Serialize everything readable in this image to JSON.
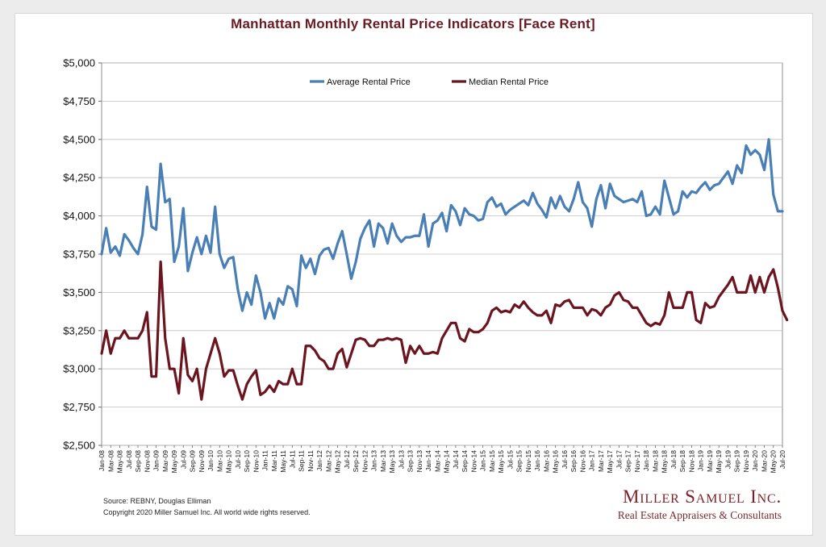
{
  "title": "Manhattan Monthly Rental Price Indicators [Face Rent]",
  "footer": {
    "source": "Source: REBNY, Douglas Elliman",
    "copyright": "Copyright 2020 Miller Samuel Inc.  All world wide rights reserved."
  },
  "brand": {
    "name": "Miller Samuel Inc.",
    "tagline": "Real Estate Appraisers & Consultants"
  },
  "colors": {
    "average": "#4a7fb5",
    "median": "#6b1520",
    "title": "#6b1a22",
    "grid": "#bfbfbf"
  },
  "chart_data": {
    "type": "line",
    "title": "Manhattan Monthly Rental Price Indicators [Face Rent]",
    "ylim": [
      2500,
      5000
    ],
    "yticks": [
      2500,
      2750,
      3000,
      3250,
      3500,
      3750,
      4000,
      4250,
      4500,
      4750,
      5000
    ],
    "ytick_labels": [
      "$2,500",
      "$2,750",
      "$3,000",
      "$3,250",
      "$3,500",
      "$3,750",
      "$4,000",
      "$4,250",
      "$4,500",
      "$4,750",
      "$5,000"
    ],
    "grid": "horizontal",
    "legend": "top-center",
    "x_start": "Jan-08",
    "x_end": "Jul-20",
    "xtick_labels": [
      "Jan-08",
      "Mar-08",
      "May-08",
      "Jul-08",
      "Sep-08",
      "Nov-08",
      "Jan-09",
      "Mar-09",
      "May-09",
      "Jul-09",
      "Sep-09",
      "Nov-09",
      "Jan-10",
      "Mar-10",
      "May-10",
      "Jul-10",
      "Sep-10",
      "Nov-10",
      "Jan-11",
      "Mar-11",
      "May-11",
      "Jul-11",
      "Sep-11",
      "Nov-11",
      "Jan-12",
      "Mar-12",
      "May-12",
      "Jul-12",
      "Sep-12",
      "Nov-12",
      "Jan-13",
      "Mar-13",
      "May-13",
      "Jul-13",
      "Sep-13",
      "Nov-13",
      "Jan-14",
      "Mar-14",
      "May-14",
      "Jul-14",
      "Sep-14",
      "Nov-14",
      "Jan-15",
      "Mar-15",
      "May-15",
      "Jul-15",
      "Sep-15",
      "Nov-15",
      "Jan-16",
      "Mar-16",
      "May-16",
      "Jul-16",
      "Sep-16",
      "Nov-16",
      "Jan-17",
      "Mar-17",
      "May-17",
      "Jul-17",
      "Sep-17",
      "Nov-17",
      "Jan-18",
      "Mar-18",
      "May-18",
      "Jul-18",
      "Sep-18",
      "Nov-18",
      "Jan-19",
      "Mar-19",
      "May-19",
      "Jul-19",
      "Sep-19",
      "Nov-19",
      "Jan-20",
      "Mar-20",
      "May-20",
      "Jul-20"
    ],
    "series": [
      {
        "name": "Average Rental Price",
        "color": "#4a7fb5",
        "values": [
          3750,
          3920,
          3760,
          3800,
          3740,
          3880,
          3840,
          3790,
          3750,
          3880,
          4190,
          3930,
          3910,
          4340,
          4090,
          4110,
          3700,
          3800,
          4050,
          3640,
          3760,
          3860,
          3750,
          3870,
          3760,
          4060,
          3750,
          3660,
          3720,
          3730,
          3520,
          3380,
          3500,
          3420,
          3610,
          3500,
          3330,
          3430,
          3330,
          3460,
          3420,
          3540,
          3520,
          3410,
          3740,
          3660,
          3720,
          3620,
          3740,
          3780,
          3790,
          3720,
          3820,
          3900,
          3750,
          3590,
          3700,
          3850,
          3920,
          3970,
          3800,
          3950,
          3920,
          3820,
          3950,
          3870,
          3830,
          3860,
          3860,
          3870,
          3870,
          4010,
          3800,
          3950,
          3970,
          4020,
          3900,
          4070,
          4030,
          3940,
          4050,
          4010,
          4000,
          3970,
          3980,
          4090,
          4120,
          4060,
          4080,
          4010,
          4040,
          4060,
          4080,
          4100,
          4070,
          4150,
          4080,
          4040,
          3990,
          4120,
          4050,
          4130,
          4060,
          4030,
          4110,
          4220,
          4090,
          4050,
          3930,
          4110,
          4200,
          4050,
          4210,
          4130,
          4110,
          4090,
          4100,
          4110,
          4090,
          4160,
          4000,
          4010,
          4060,
          4010,
          4230,
          4120,
          4010,
          4030,
          4160,
          4120,
          4160,
          4150,
          4190,
          4220,
          4170,
          4200,
          4210,
          4250,
          4290,
          4210,
          4330,
          4280,
          4460,
          4400,
          4430,
          4400,
          4300,
          4500,
          4140,
          4030,
          4030
        ]
      },
      {
        "name": "Median Rental Price",
        "color": "#6b1520",
        "values": [
          3100,
          3250,
          3100,
          3200,
          3200,
          3250,
          3200,
          3200,
          3200,
          3250,
          3370,
          2950,
          2950,
          3700,
          3200,
          3000,
          3000,
          2840,
          3200,
          2960,
          2920,
          3000,
          2800,
          3000,
          3100,
          3200,
          3100,
          2950,
          2990,
          2990,
          2890,
          2800,
          2900,
          2950,
          2990,
          2830,
          2850,
          2890,
          2850,
          2920,
          2900,
          2900,
          3000,
          2900,
          2900,
          3150,
          3150,
          3120,
          3070,
          3050,
          3000,
          3000,
          3100,
          3130,
          3010,
          3100,
          3190,
          3200,
          3190,
          3150,
          3150,
          3190,
          3190,
          3200,
          3190,
          3200,
          3190,
          3040,
          3150,
          3100,
          3150,
          3100,
          3100,
          3110,
          3100,
          3200,
          3250,
          3300,
          3300,
          3200,
          3180,
          3260,
          3240,
          3240,
          3260,
          3300,
          3380,
          3400,
          3370,
          3380,
          3370,
          3420,
          3400,
          3440,
          3400,
          3370,
          3350,
          3350,
          3380,
          3300,
          3420,
          3410,
          3440,
          3450,
          3400,
          3400,
          3400,
          3350,
          3390,
          3380,
          3350,
          3400,
          3420,
          3480,
          3500,
          3450,
          3440,
          3400,
          3400,
          3350,
          3300,
          3280,
          3300,
          3290,
          3350,
          3500,
          3400,
          3400,
          3400,
          3500,
          3500,
          3320,
          3300,
          3430,
          3400,
          3410,
          3470,
          3510,
          3550,
          3600,
          3500,
          3500,
          3500,
          3610,
          3500,
          3600,
          3500,
          3600,
          3650,
          3530,
          3380,
          3320
        ]
      }
    ]
  }
}
